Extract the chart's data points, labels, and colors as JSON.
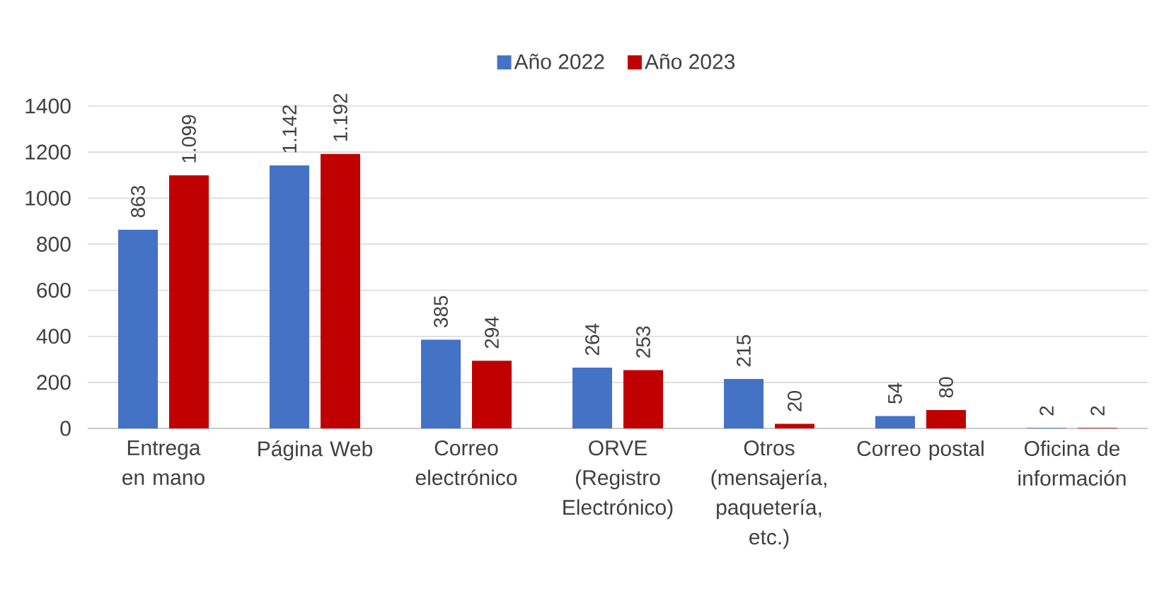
{
  "chart_data": {
    "type": "bar",
    "categories": [
      "Entrega en mano",
      "Página Web",
      "Correo electrónico",
      "ORVE (Registro Electrónico)",
      "Otros (mensajería, paquetería, etc.)",
      "Correo postal",
      "Oficina de información"
    ],
    "series": [
      {
        "name": "Año 2022",
        "color": "#4472c4",
        "values": [
          863,
          1142,
          385,
          264,
          215,
          54,
          2
        ],
        "value_labels": [
          "863",
          "1.142",
          "385",
          "264",
          "215",
          "54",
          "2"
        ]
      },
      {
        "name": "Año 2023",
        "color": "#c00000",
        "values": [
          1099,
          1192,
          294,
          253,
          20,
          80,
          2
        ],
        "value_labels": [
          "1.099",
          "1.192",
          "294",
          "253",
          "20",
          "80",
          "2"
        ]
      }
    ],
    "ylim": [
      0,
      1400
    ],
    "yticks": [
      0,
      200,
      400,
      600,
      800,
      1000,
      1200,
      1400
    ],
    "grid": "y",
    "legend": "top"
  }
}
